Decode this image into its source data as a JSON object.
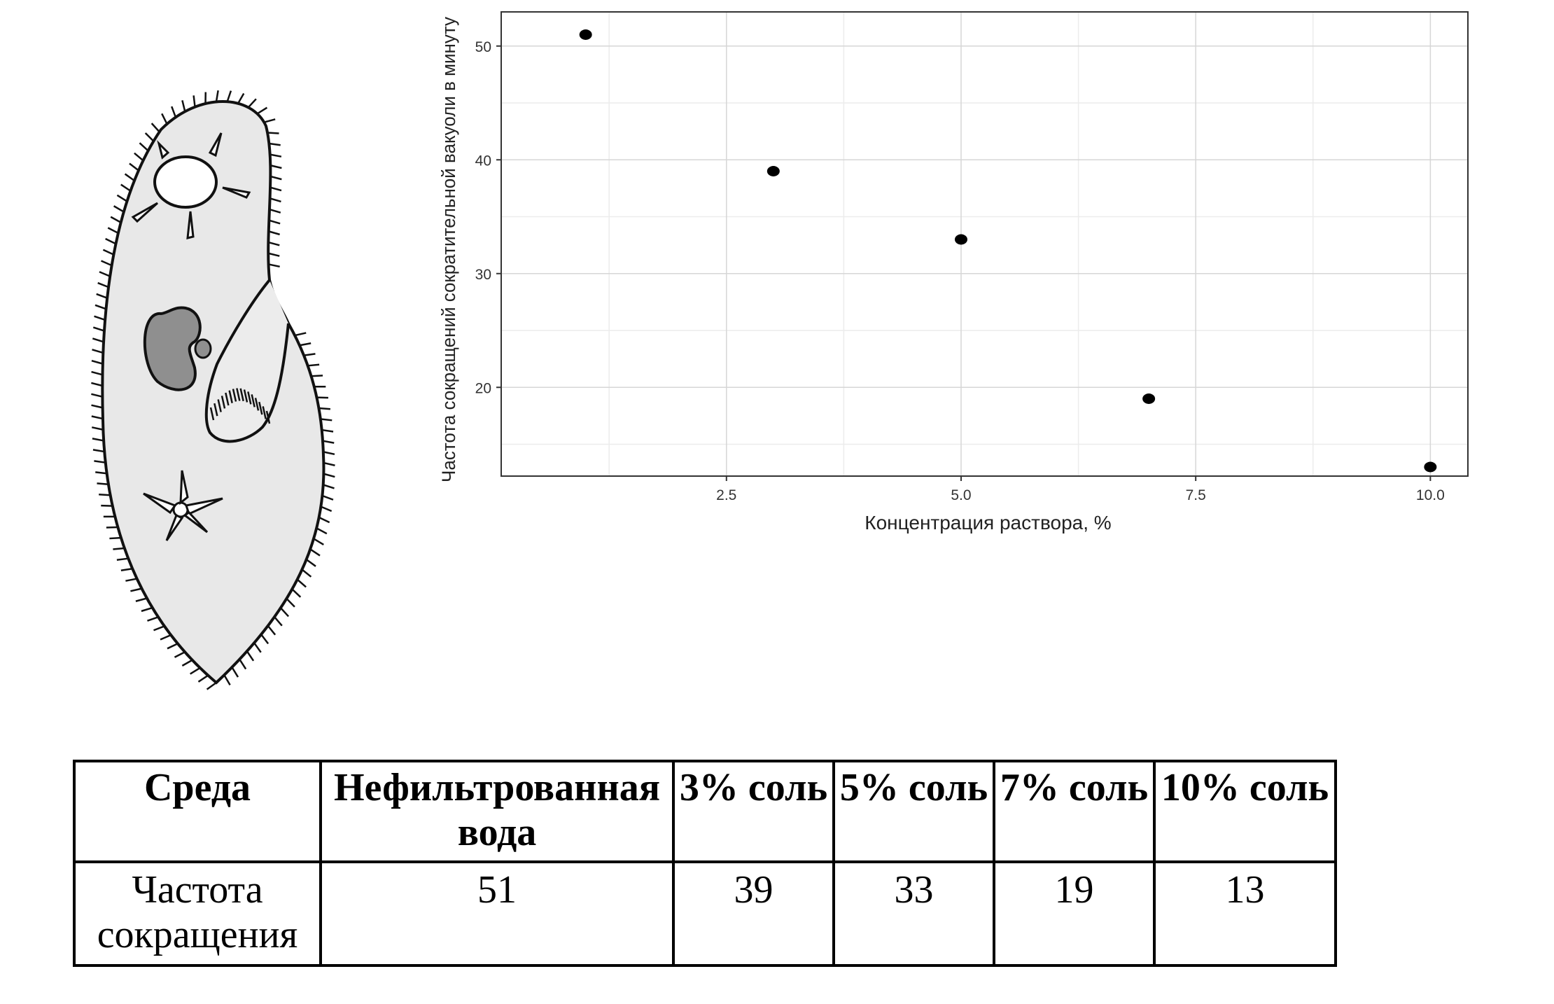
{
  "chart_data": {
    "type": "scatter",
    "xlabel": "Концентрация раствора, %",
    "ylabel": "Частота сокращений сократительной вакуоли в минуту",
    "x": [
      1,
      3,
      5,
      7,
      10
    ],
    "y": [
      51,
      39,
      33,
      19,
      13
    ],
    "xlim": [
      0.1,
      10.4
    ],
    "ylim": [
      12.2,
      53
    ],
    "xticks": [
      "2.5",
      "5.0",
      "7.5",
      "10.0"
    ],
    "yticks": [
      "20",
      "30",
      "40",
      "50"
    ],
    "grid": true,
    "colors": {
      "points": "#000000",
      "grid": "#d6d6d6",
      "frame": "#333333"
    }
  },
  "table": {
    "header": [
      "Среда",
      "Нефильтрованная вода",
      "3% соль",
      "5% соль",
      "7% соль",
      "10% соль"
    ],
    "rows": [
      [
        "Частота сокращения",
        "51",
        "39",
        "33",
        "19",
        "13"
      ]
    ]
  },
  "illustration": {
    "subject": "paramecium",
    "colors": {
      "body": "#e8e8e8",
      "nucleus": "#8f8f8f",
      "outline": "#111111"
    }
  }
}
